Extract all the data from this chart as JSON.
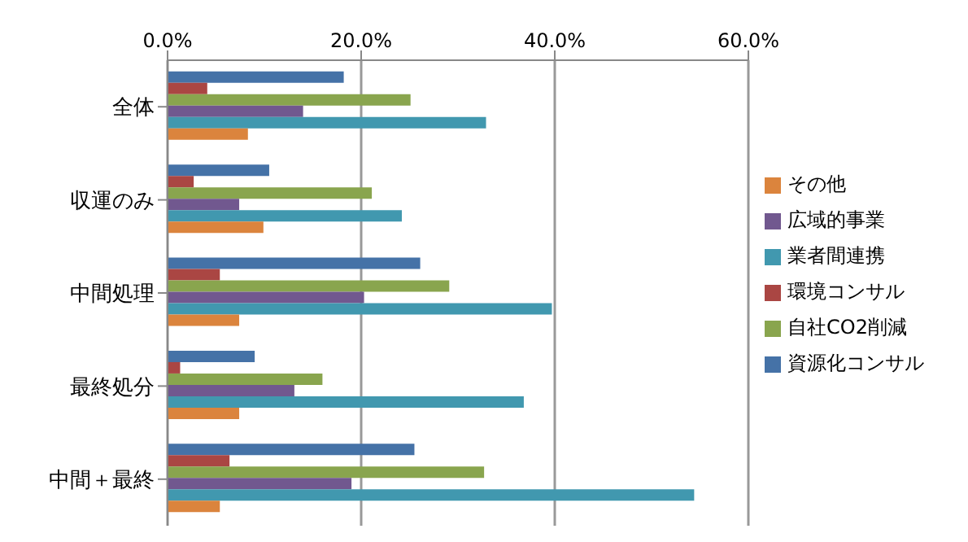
{
  "chart_data": {
    "type": "bar",
    "orientation": "horizontal",
    "categories": [
      "全体",
      "収運のみ",
      "中間処理",
      "最終処分",
      "中間＋最終"
    ],
    "series": [
      {
        "name": "資源化コンサル",
        "color": "#4572a7",
        "values": [
          18.2,
          10.5,
          26.1,
          9.0,
          25.5
        ]
      },
      {
        "name": "環境コンサル",
        "color": "#aa4643",
        "values": [
          4.1,
          2.7,
          5.4,
          1.3,
          6.4
        ]
      },
      {
        "name": "自社CO2削減",
        "color": "#89a54e",
        "values": [
          25.1,
          21.1,
          29.1,
          16.0,
          32.7
        ]
      },
      {
        "name": "広域的事業",
        "color": "#71588f",
        "values": [
          14.0,
          7.4,
          20.3,
          13.1,
          19.0
        ]
      },
      {
        "name": "業者間連携",
        "color": "#4198af",
        "values": [
          32.9,
          24.2,
          39.7,
          36.8,
          54.4
        ]
      },
      {
        "name": "その他",
        "color": "#db843d",
        "values": [
          8.3,
          9.9,
          7.4,
          7.4,
          5.4
        ]
      }
    ],
    "xlim": [
      0,
      60
    ],
    "xticks": [
      {
        "value": 0,
        "label": "0.0%"
      },
      {
        "value": 20,
        "label": "20.0%"
      },
      {
        "value": 40,
        "label": "40.0%"
      },
      {
        "value": 60,
        "label": "60.0%"
      }
    ],
    "grid": "x",
    "legend": "right"
  }
}
